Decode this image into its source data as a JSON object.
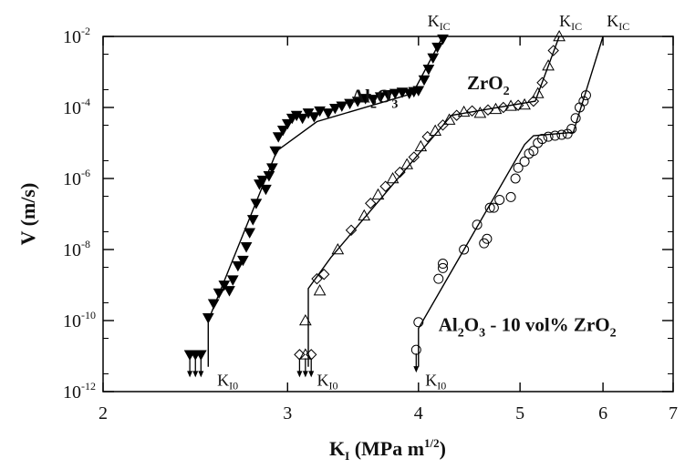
{
  "chart_data": {
    "type": "scatter",
    "x_scale": "log",
    "y_scale": "log",
    "xlim": [
      2,
      7
    ],
    "ylim": [
      1e-12,
      0.01
    ],
    "xlabel": {
      "main": "K",
      "sub": "I",
      "units": " (MPa m",
      "sup": "1/2",
      "close": ")"
    },
    "ylabel": "V (m/s)",
    "x_ticks": [
      {
        "value": 2,
        "label": "2"
      },
      {
        "value": 3,
        "label": "3"
      },
      {
        "value": 4,
        "label": "4"
      },
      {
        "value": 5,
        "label": "5"
      },
      {
        "value": 6,
        "label": "6"
      },
      {
        "value": 7,
        "label": "7"
      }
    ],
    "y_ticks": [
      {
        "value": 1e-12,
        "base": "10",
        "exp": "-12"
      },
      {
        "value": 1e-10,
        "base": "10",
        "exp": "-10"
      },
      {
        "value": 1e-08,
        "base": "10",
        "exp": "-8"
      },
      {
        "value": 1e-06,
        "base": "10",
        "exp": "-6"
      },
      {
        "value": 0.0001,
        "base": "10",
        "exp": "-4"
      },
      {
        "value": 0.01,
        "base": "10",
        "exp": "-2"
      }
    ],
    "grid": false,
    "series": [
      {
        "name": "Al2O3",
        "label_parts": [
          [
            "Al",
            "n"
          ],
          [
            "2",
            "s"
          ],
          [
            "O",
            "n"
          ],
          [
            "3",
            "s"
          ]
        ],
        "marker": "filled-triangle-down",
        "color": "#000000",
        "points": [
          [
            2.52,
            1.2e-10
          ],
          [
            2.55,
            3e-10
          ],
          [
            2.58,
            6e-10
          ],
          [
            2.61,
            1e-09
          ],
          [
            2.64,
            7e-10
          ],
          [
            2.66,
            1.4e-09
          ],
          [
            2.69,
            3.5e-09
          ],
          [
            2.72,
            5e-09
          ],
          [
            2.74,
            1.2e-08
          ],
          [
            2.76,
            3e-08
          ],
          [
            2.78,
            7e-08
          ],
          [
            2.8,
            2e-07
          ],
          [
            2.82,
            7e-07
          ],
          [
            2.84,
            9e-07
          ],
          [
            2.86,
            5e-07
          ],
          [
            2.88,
            1.2e-06
          ],
          [
            2.9,
            2e-06
          ],
          [
            2.92,
            6e-06
          ],
          [
            2.94,
            1.5e-05
          ],
          [
            2.97,
            2.3e-05
          ],
          [
            3.0,
            3.5e-05
          ],
          [
            3.03,
            5e-05
          ],
          [
            3.06,
            6e-05
          ],
          [
            3.1,
            5e-05
          ],
          [
            3.14,
            7e-05
          ],
          [
            3.18,
            5.5e-05
          ],
          [
            3.22,
            8e-05
          ],
          [
            3.28,
            7e-05
          ],
          [
            3.33,
            9.5e-05
          ],
          [
            3.38,
            0.00011
          ],
          [
            3.44,
            0.00013
          ],
          [
            3.5,
            0.00015
          ],
          [
            3.56,
            0.00018
          ],
          [
            3.62,
            0.00017
          ],
          [
            3.68,
            0.0002
          ],
          [
            3.74,
            0.00023
          ],
          [
            3.8,
            0.00025
          ],
          [
            3.86,
            0.00027
          ],
          [
            3.92,
            0.00025
          ],
          [
            3.96,
            0.00028
          ],
          [
            4.0,
            0.0003
          ],
          [
            4.05,
            0.0006
          ],
          [
            4.09,
            0.0012
          ],
          [
            4.13,
            0.0025
          ],
          [
            4.17,
            0.005
          ],
          [
            4.22,
            0.0085
          ],
          [
            2.42,
            1.1e-11
          ],
          [
            2.45,
            1.1e-11
          ],
          [
            2.48,
            1.1e-11
          ]
        ],
        "arrows_down": [
          [
            2.42,
            1.1e-11
          ],
          [
            2.45,
            1.1e-11
          ],
          [
            2.48,
            1.1e-11
          ]
        ],
        "fit_line": [
          [
            2.52,
            5e-12
          ],
          [
            2.52,
            1e-10
          ],
          [
            2.93,
            6e-06
          ],
          [
            3.2,
            4e-05
          ],
          [
            3.95,
            0.00025
          ],
          [
            4.22,
            0.01
          ]
        ],
        "threshold_label": {
          "main": "K",
          "sub": "I0",
          "at": [
            2.57,
            3e-12
          ]
        },
        "kic_label": {
          "main": "K",
          "sub": "IC",
          "at": [
            4.08,
            0.012
          ]
        },
        "name_at": [
          3.45,
          0.00014
        ]
      },
      {
        "name": "ZrO2",
        "label_parts": [
          [
            "ZrO",
            "n"
          ],
          [
            "2",
            "s"
          ]
        ],
        "marker": "open-triangle-up-and-diamond",
        "color": "#000000",
        "points": [
          [
            3.12,
            1e-10
          ],
          [
            3.2,
            1.5e-09
          ],
          [
            3.22,
            7e-10
          ],
          [
            3.25,
            2e-09
          ],
          [
            3.35,
            1e-08
          ],
          [
            3.45,
            3.5e-08
          ],
          [
            3.55,
            9e-08
          ],
          [
            3.6,
            2e-07
          ],
          [
            3.66,
            3.5e-07
          ],
          [
            3.72,
            6e-07
          ],
          [
            3.78,
            1e-06
          ],
          [
            3.84,
            1.5e-06
          ],
          [
            3.9,
            2.5e-06
          ],
          [
            3.96,
            4e-06
          ],
          [
            4.02,
            8e-06
          ],
          [
            4.08,
            1.5e-05
          ],
          [
            4.15,
            2.2e-05
          ],
          [
            4.22,
            3.2e-05
          ],
          [
            4.28,
            4.5e-05
          ],
          [
            4.35,
            6e-05
          ],
          [
            4.42,
            7.5e-05
          ],
          [
            4.5,
            8e-05
          ],
          [
            4.58,
            7e-05
          ],
          [
            4.66,
            8.5e-05
          ],
          [
            4.74,
            9e-05
          ],
          [
            4.82,
            0.0001
          ],
          [
            4.9,
            0.00011
          ],
          [
            4.98,
            0.000115
          ],
          [
            5.05,
            0.00012
          ],
          [
            5.15,
            0.00015
          ],
          [
            5.2,
            0.00025
          ],
          [
            5.25,
            0.0005
          ],
          [
            5.32,
            0.0015
          ],
          [
            5.38,
            0.004
          ],
          [
            5.45,
            0.01
          ],
          [
            3.08,
            1.1e-11
          ],
          [
            3.12,
            1.1e-11
          ],
          [
            3.16,
            1.1e-11
          ]
        ],
        "arrows_down": [
          [
            3.08,
            1.1e-11
          ],
          [
            3.12,
            1.1e-11
          ],
          [
            3.16,
            1.1e-11
          ]
        ],
        "fit_line": [
          [
            3.14,
            5e-12
          ],
          [
            3.14,
            8e-10
          ],
          [
            3.3,
            6e-09
          ],
          [
            4.3,
            6e-05
          ],
          [
            5.17,
            0.00015
          ],
          [
            5.45,
            0.01
          ]
        ],
        "threshold_label": {
          "main": "K",
          "sub": "I0",
          "at": [
            3.2,
            3e-12
          ]
        },
        "kic_label": {
          "main": "K",
          "sub": "IC",
          "at": [
            5.45,
            0.012
          ]
        },
        "name_at": [
          4.45,
          0.00033
        ]
      },
      {
        "name": "Al2O3 - 10 vol% ZrO2",
        "label_parts": [
          [
            "Al",
            "n"
          ],
          [
            "2",
            "s"
          ],
          [
            "O",
            "n"
          ],
          [
            "3",
            "s"
          ],
          [
            " - 10 vol% ZrO",
            "n"
          ],
          [
            "2",
            "s"
          ]
        ],
        "marker": "open-circle",
        "color": "#000000",
        "points": [
          [
            4.0,
            9e-11
          ],
          [
            3.98,
            1.5e-11
          ],
          [
            4.18,
            1.5e-09
          ],
          [
            4.22,
            3e-09
          ],
          [
            4.22,
            4e-09
          ],
          [
            4.42,
            1e-08
          ],
          [
            4.55,
            5e-08
          ],
          [
            4.62,
            1.5e-08
          ],
          [
            4.65,
            2e-08
          ],
          [
            4.68,
            1.5e-07
          ],
          [
            4.72,
            1.5e-07
          ],
          [
            4.78,
            2.5e-07
          ],
          [
            4.9,
            3e-07
          ],
          [
            4.95,
            1e-06
          ],
          [
            4.98,
            2e-06
          ],
          [
            5.05,
            3e-06
          ],
          [
            5.1,
            5e-06
          ],
          [
            5.15,
            6e-06
          ],
          [
            5.2,
            1e-05
          ],
          [
            5.25,
            1.3e-05
          ],
          [
            5.32,
            1.5e-05
          ],
          [
            5.4,
            1.6e-05
          ],
          [
            5.48,
            1.7e-05
          ],
          [
            5.55,
            1.8e-05
          ],
          [
            5.6,
            2.5e-05
          ],
          [
            5.65,
            5e-05
          ],
          [
            5.7,
            0.0001
          ],
          [
            5.75,
            0.00015
          ],
          [
            5.78,
            0.00022
          ]
        ],
        "arrows_down": [
          [
            3.98,
            1.5e-11
          ]
        ],
        "fit_line": [
          [
            4.0,
            5e-12
          ],
          [
            4.0,
            6e-11
          ],
          [
            5.05,
            9e-06
          ],
          [
            5.15,
            1.6e-05
          ],
          [
            5.62,
            2e-05
          ],
          [
            6.0,
            0.01
          ]
        ],
        "threshold_label": {
          "main": "K",
          "sub": "I0",
          "at": [
            4.06,
            3e-12
          ]
        },
        "kic_label": {
          "main": "K",
          "sub": "IC",
          "at": [
            6.05,
            0.012
          ]
        },
        "name_at": [
          4.18,
          5e-11
        ]
      }
    ]
  }
}
